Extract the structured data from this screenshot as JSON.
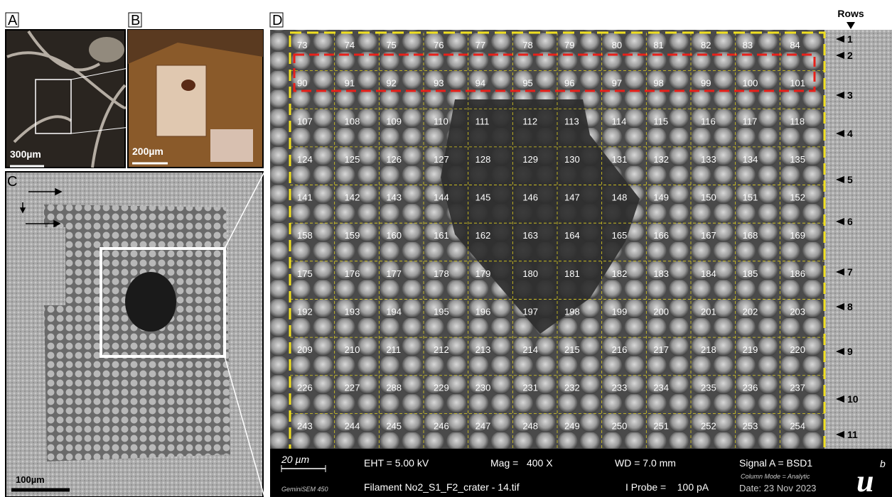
{
  "panels": {
    "a": {
      "label": "A",
      "scale_bar": "300µm"
    },
    "b": {
      "label": "B",
      "scale_bar": "200µm"
    },
    "c": {
      "label": "C",
      "scale_bar": "100µm"
    },
    "d": {
      "label": "D",
      "rows_title": "Rows",
      "row_labels": [
        1,
        2,
        3,
        4,
        5,
        6,
        7,
        8,
        9,
        10,
        11
      ],
      "grid": [
        [
          73,
          74,
          75,
          76,
          77,
          78,
          79,
          80,
          81,
          82,
          83,
          84
        ],
        [
          90,
          91,
          92,
          93,
          94,
          95,
          96,
          97,
          98,
          99,
          100,
          101
        ],
        [
          107,
          108,
          109,
          110,
          111,
          112,
          113,
          114,
          115,
          116,
          117,
          118
        ],
        [
          124,
          125,
          126,
          127,
          128,
          129,
          130,
          131,
          132,
          133,
          134,
          135
        ],
        [
          141,
          142,
          143,
          144,
          145,
          146,
          147,
          148,
          149,
          150,
          151,
          152
        ],
        [
          158,
          159,
          160,
          161,
          162,
          163,
          164,
          165,
          166,
          167,
          168,
          169
        ],
        [
          175,
          176,
          177,
          178,
          179,
          180,
          181,
          182,
          183,
          184,
          185,
          186
        ],
        [
          192,
          193,
          194,
          195,
          196,
          197,
          198,
          199,
          200,
          201,
          202,
          203
        ],
        [
          209,
          210,
          211,
          212,
          213,
          214,
          215,
          216,
          217,
          218,
          219,
          220
        ],
        [
          226,
          227,
          288,
          229,
          230,
          231,
          232,
          233,
          234,
          235,
          236,
          237
        ],
        [
          243,
          244,
          245,
          246,
          247,
          248,
          249,
          250,
          251,
          252,
          253,
          254
        ]
      ]
    }
  },
  "info_bar": {
    "scale": "20 µm",
    "instrument": "GeminiSEM 450",
    "eht": "EHT = 5.00 kV",
    "file": "Filament No2_S1_F2_crater - 14.tif",
    "mag": "Mag =   400 X",
    "wd": "WD = 7.0 mm",
    "probe": "I Probe =    100 pA",
    "signal": "Signal A = BSD1",
    "column_mode": "Column Mode = Analytic",
    "date": "Date: 23 Nov 2023",
    "logo": "u",
    "logo_sup": "b"
  }
}
